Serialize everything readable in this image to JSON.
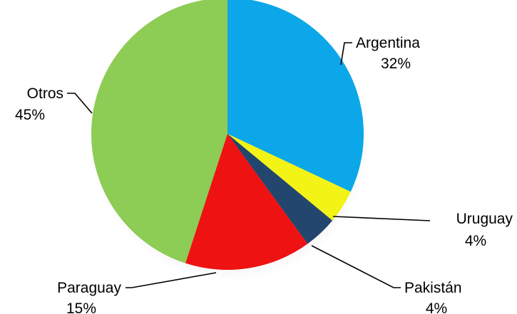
{
  "chart_data": {
    "type": "pie",
    "title": "",
    "start_angle_deg": 0,
    "direction": "clockwise",
    "slices": [
      {
        "name": "Argentina",
        "value": 32,
        "label": "32%",
        "color": "#0BA7E8"
      },
      {
        "name": "Uruguay",
        "value": 4,
        "label": "4%",
        "color": "#F3F316"
      },
      {
        "name": "Pakistán",
        "value": 4,
        "label": "4%",
        "color": "#23466E"
      },
      {
        "name": "Paraguay",
        "value": 15,
        "label": "15%",
        "color": "#EE1212"
      },
      {
        "name": "Otros",
        "value": 45,
        "label": "45%",
        "color": "#8DCC55"
      }
    ]
  },
  "labels": {
    "argentina": {
      "name": "Argentina",
      "pct": "32%"
    },
    "uruguay": {
      "name": "Uruguay",
      "pct": "4%"
    },
    "pakistan": {
      "name": "Pakistán",
      "pct": "4%"
    },
    "paraguay": {
      "name": "Paraguay",
      "pct": "15%"
    },
    "otros": {
      "name": "Otros",
      "pct": "45%"
    }
  }
}
